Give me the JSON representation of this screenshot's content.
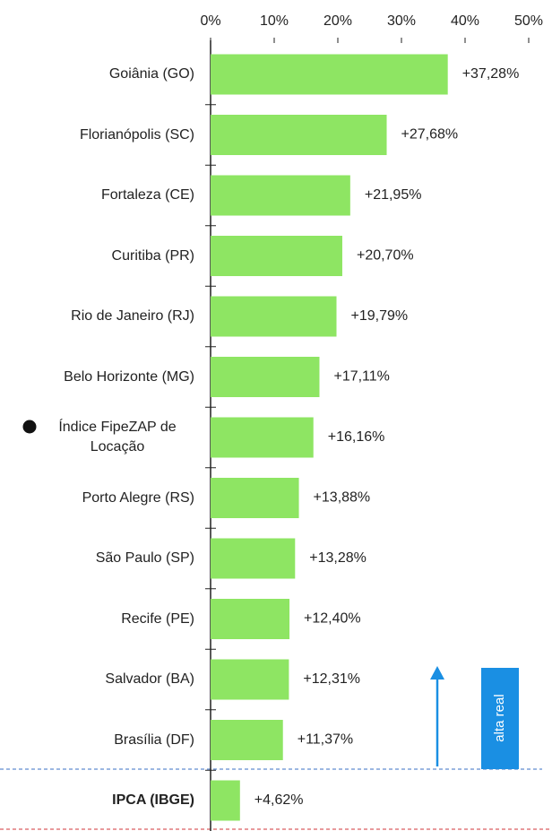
{
  "chart_data": {
    "type": "bar",
    "orientation": "horizontal",
    "categories": [
      "Goiânia (GO)",
      "Florianópolis (SC)",
      "Fortaleza (CE)",
      "Curitiba (PR)",
      "Rio de Janeiro (RJ)",
      "Belo Horizonte (MG)",
      "Índice FipeZAP de Locação",
      "Porto Alegre (RS)",
      "São Paulo (SP)",
      "Recife (PE)",
      "Salvador (BA)",
      "Brasília (DF)",
      "IPCA (IBGE)"
    ],
    "values": [
      37.28,
      27.68,
      21.95,
      20.7,
      19.79,
      17.11,
      16.16,
      13.88,
      13.28,
      12.4,
      12.31,
      11.37,
      4.62
    ],
    "value_labels": [
      "+37,28%",
      "+27,68%",
      "+21,95%",
      "+20,70%",
      "+19,79%",
      "+17,11%",
      "+16,16%",
      "+13,88%",
      "+13,28%",
      "+12,40%",
      "+12,31%",
      "+11,37%",
      "+4,62%"
    ],
    "color": "#8ee563",
    "xlim": [
      0,
      50
    ],
    "xticks": [
      {
        "value": 0,
        "label": "0%"
      },
      {
        "value": 10,
        "label": "10%"
      },
      {
        "value": 20,
        "label": "20%"
      },
      {
        "value": 30,
        "label": "30%"
      },
      {
        "value": 40,
        "label": "40%"
      },
      {
        "value": 50,
        "label": "50%"
      }
    ],
    "annotation": "alta real"
  }
}
